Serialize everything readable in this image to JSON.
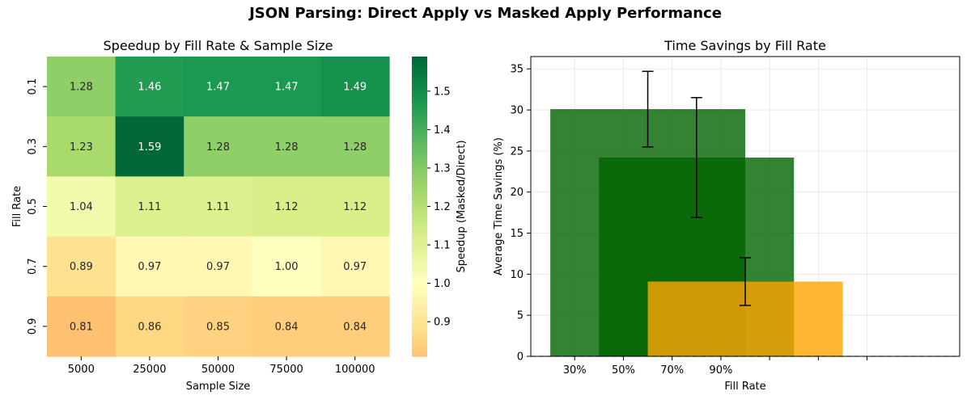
{
  "figure": {
    "suptitle": "JSON Parsing: Direct Apply vs Masked Apply Performance"
  },
  "chart_data": [
    {
      "type": "heatmap",
      "title": "Speedup by Fill Rate & Sample Size",
      "xlabel": "Sample Size",
      "ylabel": "Fill Rate",
      "x_categories": [
        "5000",
        "25000",
        "50000",
        "75000",
        "100000"
      ],
      "y_categories": [
        "0.1",
        "0.3",
        "0.5",
        "0.7",
        "0.9"
      ],
      "values": [
        [
          1.28,
          1.46,
          1.47,
          1.47,
          1.49
        ],
        [
          1.23,
          1.59,
          1.28,
          1.28,
          1.28
        ],
        [
          1.04,
          1.11,
          1.11,
          1.12,
          1.12
        ],
        [
          0.89,
          0.97,
          0.97,
          1.0,
          0.97
        ],
        [
          0.81,
          0.86,
          0.85,
          0.84,
          0.84
        ]
      ],
      "colorbar": {
        "label": "Speedup (Masked/Direct)",
        "range": [
          0.81,
          1.59
        ],
        "ticks": [
          "0.9",
          "1.0",
          "1.1",
          "1.2",
          "1.3",
          "1.4",
          "1.5"
        ],
        "colormap": "RdYlGn (centered at 1.0)"
      }
    },
    {
      "type": "bar",
      "title": "Time Savings by Fill Rate",
      "xlabel": "Fill Rate",
      "ylabel": "Average Time Savings (%)",
      "tick_labels": [
        "30%",
        "50%",
        "70%",
        "90%",
        "",
        "",
        ""
      ],
      "x_ticks": [
        0,
        1,
        2,
        3,
        4,
        5,
        6
      ],
      "xlim": [
        -0.9,
        7.9
      ],
      "ylim": [
        0,
        36.5
      ],
      "y_ticks": [
        0,
        5,
        10,
        15,
        20,
        25,
        30,
        35
      ],
      "grid": true,
      "baseline": 0,
      "bars": [
        {
          "center": 1.5,
          "width": 4,
          "value": 30.1,
          "error": 4.6,
          "color": "#006400",
          "alpha": 0.8
        },
        {
          "center": 2.5,
          "width": 4,
          "value": 24.2,
          "error": 7.3,
          "color": "#006400",
          "alpha": 0.8
        },
        {
          "center": 3.5,
          "width": 4,
          "value": 9.1,
          "error": 2.9,
          "color": "#ffa500",
          "alpha": 0.8
        }
      ]
    }
  ]
}
